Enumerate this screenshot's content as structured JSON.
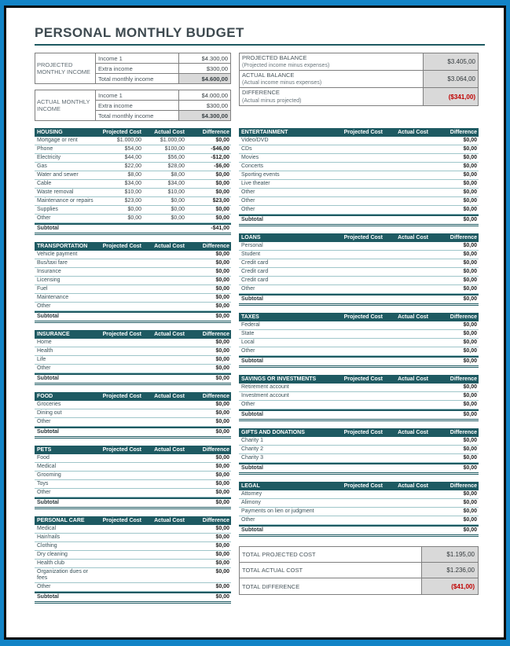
{
  "page": {
    "title": "PERSONAL MONTHLY BUDGET"
  },
  "colors": {
    "frame_blue": "#1283C6",
    "teal": "#1E5A62",
    "teal_light": "#9FC6CA",
    "red": "#C00000",
    "gray_fill": "#D9D9D9",
    "border_gray": "#7F7F7F"
  },
  "income_tables": [
    {
      "label": "PROJECTED MONTHLY INCOME",
      "rows": [
        {
          "name": "Income 1",
          "value": "$4.300,00",
          "total": false
        },
        {
          "name": "Extra income",
          "value": "$300,00",
          "total": false
        },
        {
          "name": "Total monthly income",
          "value": "$4.600,00",
          "total": true
        }
      ]
    },
    {
      "label": "ACTUAL MONTHLY INCOME",
      "rows": [
        {
          "name": "Income 1",
          "value": "$4.000,00",
          "total": false
        },
        {
          "name": "Extra income",
          "value": "$300,00",
          "total": false
        },
        {
          "name": "Total monthly income",
          "value": "$4.300,00",
          "total": true
        }
      ]
    }
  ],
  "balance": {
    "rows": [
      {
        "title": "PROJECTED BALANCE",
        "subtitle": "(Projected income minus expenses)",
        "value": "$3.405,00",
        "negative": false
      },
      {
        "title": "ACTUAL BALANCE",
        "subtitle": "(Actual income minus expenses)",
        "value": "$3.064,00",
        "negative": false
      },
      {
        "title": "DIFFERENCE",
        "subtitle": "(Actual minus projected)",
        "value": "($341,00)",
        "negative": true
      }
    ]
  },
  "column_headers": [
    "Projected Cost",
    "Actual Cost",
    "Difference"
  ],
  "sections": {
    "left": [
      {
        "title": "HOUSING",
        "rows": [
          [
            "Mortgage or rent",
            "$1.000,00",
            "$1.000,00",
            "$0,00"
          ],
          [
            "Phone",
            "$54,00",
            "$100,00",
            "-$46,00"
          ],
          [
            "Electricity",
            "$44,00",
            "$56,00",
            "-$12,00"
          ],
          [
            "Gas",
            "$22,00",
            "$28,00",
            "-$6,00"
          ],
          [
            "Water and sewer",
            "$8,00",
            "$8,00",
            "$0,00"
          ],
          [
            "Cable",
            "$34,00",
            "$34,00",
            "$0,00"
          ],
          [
            "Waste removal",
            "$10,00",
            "$10,00",
            "$0,00"
          ],
          [
            "Maintenance or repairs",
            "$23,00",
            "$0,00",
            "$23,00"
          ],
          [
            "Supplies",
            "$0,00",
            "$0,00",
            "$0,00"
          ],
          [
            "Other",
            "$0,00",
            "$0,00",
            "$0,00"
          ]
        ],
        "subtotal": [
          "Subtotal",
          "",
          "",
          "-$41,00"
        ]
      },
      {
        "title": "TRANSPORTATION",
        "rows": [
          [
            "Vehicle payment",
            "",
            "",
            "$0,00"
          ],
          [
            "Bus/taxi fare",
            "",
            "",
            "$0,00"
          ],
          [
            "Insurance",
            "",
            "",
            "$0,00"
          ],
          [
            "Licensing",
            "",
            "",
            "$0,00"
          ],
          [
            "Fuel",
            "",
            "",
            "$0,00"
          ],
          [
            "Maintenance",
            "",
            "",
            "$0,00"
          ],
          [
            "Other",
            "",
            "",
            "$0,00"
          ]
        ],
        "subtotal": [
          "Subtotal",
          "",
          "",
          "$0,00"
        ]
      },
      {
        "title": "INSURANCE",
        "rows": [
          [
            "Home",
            "",
            "",
            "$0,00"
          ],
          [
            "Health",
            "",
            "",
            "$0,00"
          ],
          [
            "Life",
            "",
            "",
            "$0,00"
          ],
          [
            "Other",
            "",
            "",
            "$0,00"
          ]
        ],
        "subtotal": [
          "Subtotal",
          "",
          "",
          "$0,00"
        ]
      },
      {
        "title": "FOOD",
        "rows": [
          [
            "Groceries",
            "",
            "",
            "$0,00"
          ],
          [
            "Dining out",
            "",
            "",
            "$0,00"
          ],
          [
            "Other",
            "",
            "",
            "$0,00"
          ]
        ],
        "subtotal": [
          "Subtotal",
          "",
          "",
          "$0,00"
        ]
      },
      {
        "title": "PETS",
        "rows": [
          [
            "Food",
            "",
            "",
            "$0,00"
          ],
          [
            "Medical",
            "",
            "",
            "$0,00"
          ],
          [
            "Grooming",
            "",
            "",
            "$0,00"
          ],
          [
            "Toys",
            "",
            "",
            "$0,00"
          ],
          [
            "Other",
            "",
            "",
            "$0,00"
          ]
        ],
        "subtotal": [
          "Subtotal",
          "",
          "",
          "$0,00"
        ]
      },
      {
        "title": "PERSONAL CARE",
        "rows": [
          [
            "Medical",
            "",
            "",
            "$0,00"
          ],
          [
            "Hair/nails",
            "",
            "",
            "$0,00"
          ],
          [
            "Clothing",
            "",
            "",
            "$0,00"
          ],
          [
            "Dry cleaning",
            "",
            "",
            "$0,00"
          ],
          [
            "Health club",
            "",
            "",
            "$0,00"
          ],
          [
            "Organization dues or fees",
            "",
            "",
            "$0,00"
          ],
          [
            "Other",
            "",
            "",
            "$0,00"
          ]
        ],
        "subtotal": [
          "Subtotal",
          "",
          "",
          "$0,00"
        ]
      }
    ],
    "right": [
      {
        "title": "ENTERTAINMENT",
        "rows": [
          [
            "Video/DVD",
            "",
            "",
            "$0,00"
          ],
          [
            "CDs",
            "",
            "",
            "$0,00"
          ],
          [
            "Movies",
            "",
            "",
            "$0,00"
          ],
          [
            "Concerts",
            "",
            "",
            "$0,00"
          ],
          [
            "Sporting events",
            "",
            "",
            "$0,00"
          ],
          [
            "Live theater",
            "",
            "",
            "$0,00"
          ],
          [
            "Other",
            "",
            "",
            "$0,00"
          ],
          [
            "Other",
            "",
            "",
            "$0,00"
          ],
          [
            "Other",
            "",
            "",
            "$0,00"
          ]
        ],
        "subtotal": [
          "Subtotal",
          "",
          "",
          "$0,00"
        ]
      },
      {
        "title": "LOANS",
        "rows": [
          [
            "Personal",
            "",
            "",
            "$0,00"
          ],
          [
            "Student",
            "",
            "",
            "$0,00"
          ],
          [
            "Credit card",
            "",
            "",
            "$0,00"
          ],
          [
            "Credit card",
            "",
            "",
            "$0,00"
          ],
          [
            "Credit card",
            "",
            "",
            "$0,00"
          ],
          [
            "Other",
            "",
            "",
            "$0,00"
          ]
        ],
        "subtotal": [
          "Subtotal",
          "",
          "",
          "$0,00"
        ]
      },
      {
        "title": "TAXES",
        "rows": [
          [
            "Federal",
            "",
            "",
            "$0,00"
          ],
          [
            "State",
            "",
            "",
            "$0,00"
          ],
          [
            "Local",
            "",
            "",
            "$0,00"
          ],
          [
            "Other",
            "",
            "",
            "$0,00"
          ]
        ],
        "subtotal": [
          "Subtotal",
          "",
          "",
          "$0,00"
        ]
      },
      {
        "title": "SAVINGS OR INVESTMENTS",
        "rows": [
          [
            "Retirement account",
            "",
            "",
            "$0,00"
          ],
          [
            "Investment account",
            "",
            "",
            "$0,00"
          ],
          [
            "Other",
            "",
            "",
            "$0,00"
          ]
        ],
        "subtotal": [
          "Subtotal",
          "",
          "",
          "$0,00"
        ]
      },
      {
        "title": "GIFTS AND DONATIONS",
        "rows": [
          [
            "Charity 1",
            "",
            "",
            "$0,00"
          ],
          [
            "Charity 2",
            "",
            "",
            "$0,00"
          ],
          [
            "Charity 3",
            "",
            "",
            "$0,00"
          ]
        ],
        "subtotal": [
          "Subtotal",
          "",
          "",
          "$0,00"
        ]
      },
      {
        "title": "LEGAL",
        "rows": [
          [
            "Attorney",
            "",
            "",
            "$0,00"
          ],
          [
            "Alimony",
            "",
            "",
            "$0,00"
          ],
          [
            "Payments on lien or judgment",
            "",
            "",
            "$0,00"
          ],
          [
            "Other",
            "",
            "",
            "$0,00"
          ]
        ],
        "subtotal": [
          "Subtotal",
          "",
          "",
          "$0,00"
        ]
      }
    ]
  },
  "totals": [
    {
      "label": "TOTAL PROJECTED COST",
      "value": "$1.195,00",
      "negative": false
    },
    {
      "label": "TOTAL ACTUAL COST",
      "value": "$1.236,00",
      "negative": false
    },
    {
      "label": "TOTAL DIFFERENCE",
      "value": "($41,00)",
      "negative": true
    }
  ]
}
